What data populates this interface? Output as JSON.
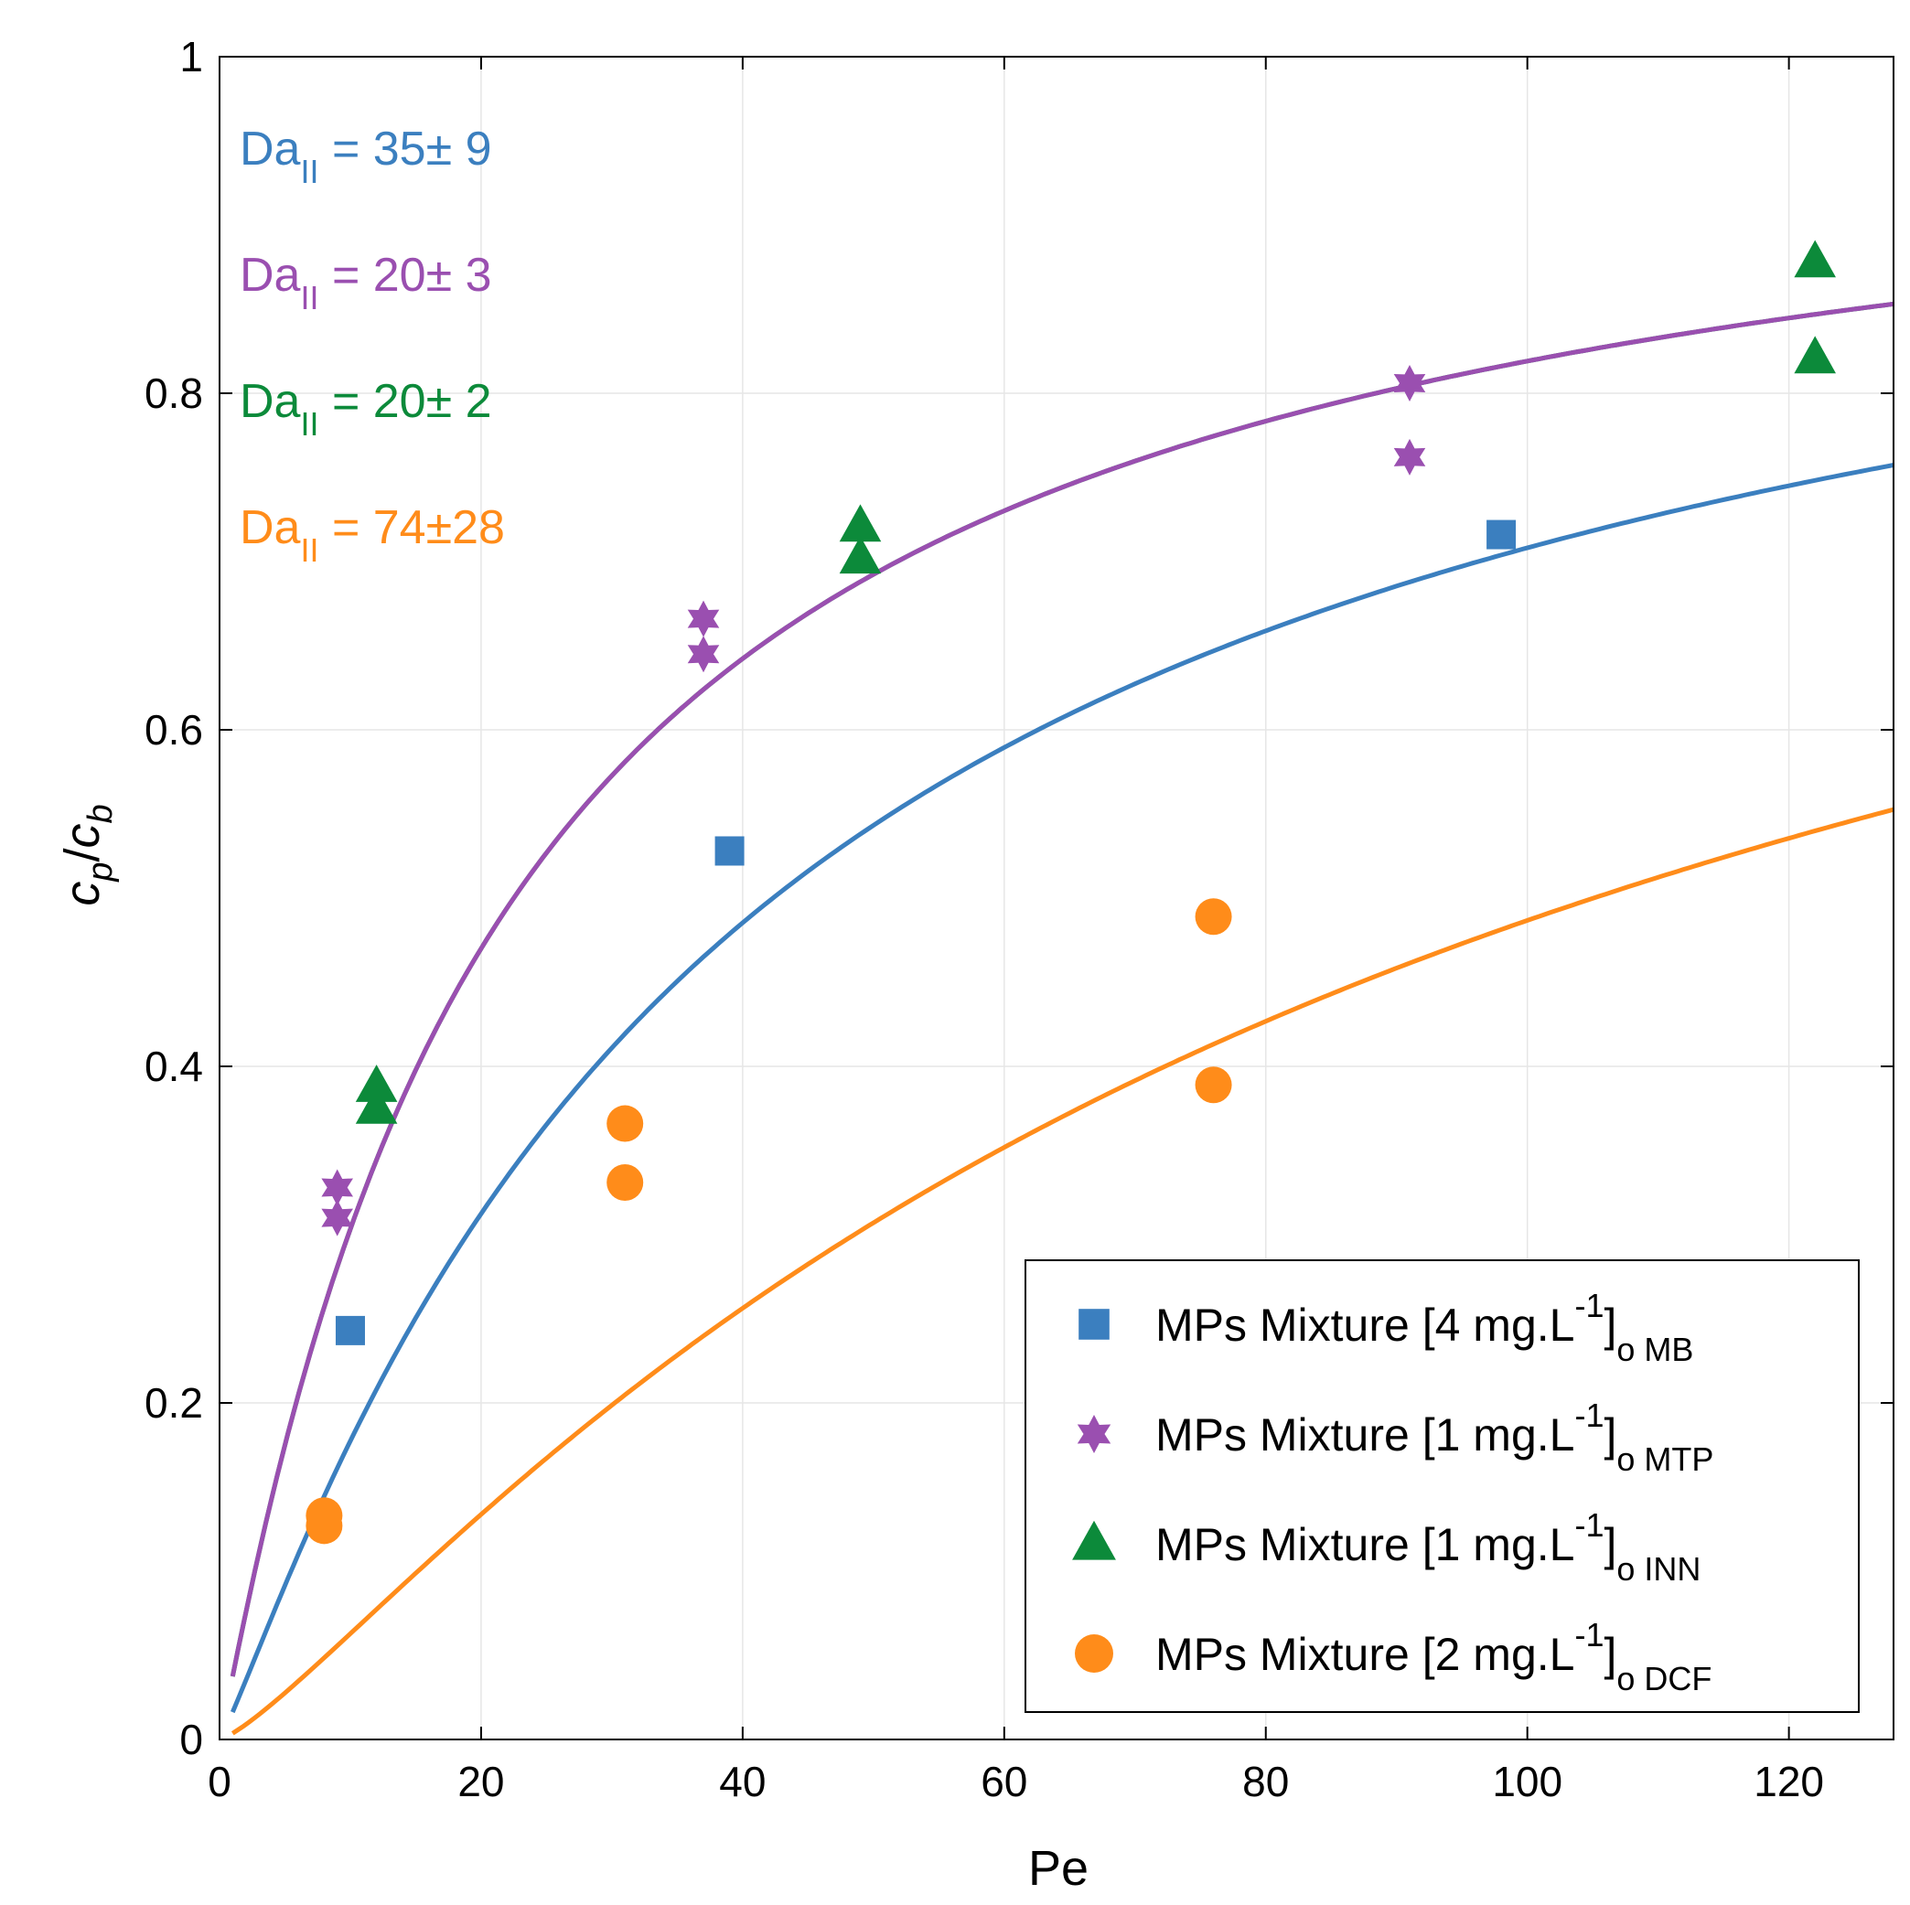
{
  "chart_data": {
    "type": "scatter",
    "xlabel": "Pe",
    "ylabel": "c_p/c_b",
    "ylabel_parts": {
      "c": "c",
      "p": "p",
      "slash": "/",
      "b": "b"
    },
    "xlim": [
      0,
      128
    ],
    "ylim": [
      0,
      1
    ],
    "xticks": [
      0,
      20,
      40,
      60,
      80,
      100,
      120
    ],
    "xtick_labels": [
      "0",
      "20",
      "40",
      "60",
      "80",
      "100",
      "120"
    ],
    "yticks": [
      0,
      0.2,
      0.4,
      0.6,
      0.8,
      1
    ],
    "ytick_labels": [
      "0",
      "0.2",
      "0.4",
      "0.6",
      "0.8",
      "1"
    ],
    "grid": true,
    "legend_position": "bottom-right",
    "annotations": [
      {
        "main": "Da",
        "sub": "II",
        "rest": " = 35± 9",
        "color": "#3b7fbf"
      },
      {
        "main": "Da",
        "sub": "II",
        "rest": " = 20± 3",
        "color": "#9a4fb0"
      },
      {
        "main": "Da",
        "sub": "II",
        "rest": " = 20± 2",
        "color": "#0c8a3a"
      },
      {
        "main": "Da",
        "sub": "II",
        "rest": " = 74±28",
        "color": "#ff8c1a"
      }
    ],
    "series": [
      {
        "name": "MPs Mixture [4 mg.L-1]o MB",
        "label_main": "MPs Mixture [4 mg.L",
        "label_sup": "-1",
        "label_close": "]",
        "label_sub": "o MB",
        "marker": "square",
        "color": "#3b7fbf",
        "x": [
          10,
          39,
          98
        ],
        "y": [
          0.243,
          0.528,
          0.716
        ],
        "fit": {
          "model": "graetz",
          "Da": 35
        }
      },
      {
        "name": "MPs Mixture [1 mg.L-1]o MTP",
        "label_main": "MPs Mixture [1 mg.L",
        "label_sup": "-1",
        "label_close": "]",
        "label_sub": "o MTP",
        "marker": "hexagram",
        "color": "#9a4fb0",
        "x": [
          9,
          9,
          37,
          37,
          91,
          91
        ],
        "y": [
          0.328,
          0.31,
          0.666,
          0.645,
          0.806,
          0.762
        ],
        "fit": {
          "model": "graetz",
          "Da": 20
        }
      },
      {
        "name": "MPs Mixture [1 mg.L-1]o INN",
        "label_main": "MPs Mixture [1 mg.L",
        "label_sup": "-1",
        "label_close": "]",
        "label_sub": "o INN",
        "marker": "triangle",
        "color": "#0c8a3a",
        "x": [
          12,
          12,
          49,
          49,
          122,
          122
        ],
        "y": [
          0.388,
          0.375,
          0.721,
          0.702,
          0.878,
          0.821
        ],
        "fit": {
          "model": "graetz",
          "Da": 20
        }
      },
      {
        "name": "MPs Mixture [2 mg.L-1]o DCF",
        "label_main": "MPs Mixture [2 mg.L",
        "label_sup": "-1",
        "label_close": "]",
        "label_sub": "o DCF",
        "marker": "circle",
        "color": "#ff8c1a",
        "x": [
          8,
          8,
          31,
          31,
          76,
          76
        ],
        "y": [
          0.133,
          0.127,
          0.366,
          0.331,
          0.489,
          0.389
        ],
        "fit": {
          "model": "graetz",
          "Da": 74
        }
      }
    ]
  }
}
